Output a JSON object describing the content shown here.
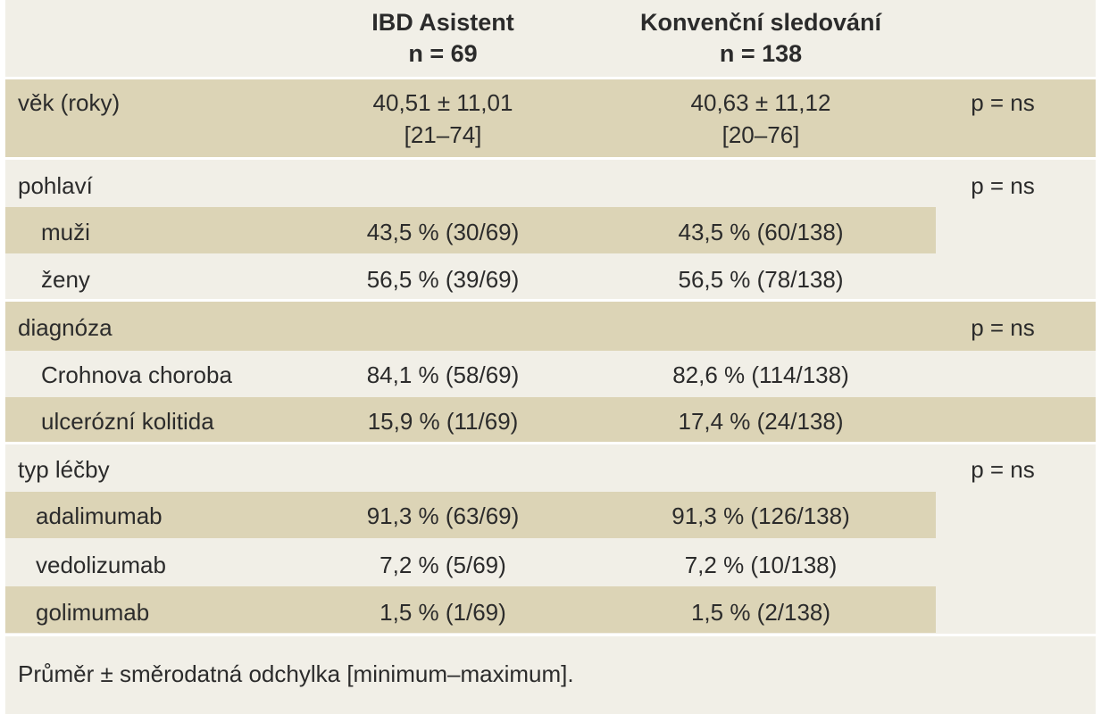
{
  "header": {
    "col_ibd_title": "IBD Asistent",
    "col_ibd_n": "n = 69",
    "col_conv_title": "Konvenční sledování",
    "col_conv_n": "n = 138"
  },
  "rows": {
    "age": {
      "label": "věk (roky)",
      "ibd_line1": "40,51 ± 11,01",
      "ibd_line2": "[21–74]",
      "conv_line1": "40,63 ± 11,12",
      "conv_line2": "[20–76]",
      "p": "p = ns"
    },
    "sex": {
      "label": "pohlaví",
      "p": "p = ns"
    },
    "men": {
      "label": "muži",
      "ibd": "43,5 % (30/69)",
      "conv": "43,5 % (60/138)"
    },
    "women": {
      "label": "ženy",
      "ibd": "56,5 % (39/69)",
      "conv": "56,5 % (78/138)"
    },
    "diagnosis": {
      "label": "diagnóza",
      "p": "p = ns"
    },
    "crohn": {
      "label": "Crohnova choroba",
      "ibd": "84,1 % (58/69)",
      "conv": "82,6 % (114/138)"
    },
    "uc": {
      "label": "ulcerózní kolitida",
      "ibd": "15,9 % (11/69)",
      "conv": "17,4 % (24/138)"
    },
    "treatment": {
      "label": "typ léčby",
      "p": "p = ns"
    },
    "adalimumab": {
      "label": "adalimumab",
      "ibd": "91,3 % (63/69)",
      "conv": "91,3 % (126/138)"
    },
    "vedolizumab": {
      "label": "vedolizumab",
      "ibd": "7,2 % (5/69)",
      "conv": "7,2 % (10/138)"
    },
    "golimumab": {
      "label": "golimumab",
      "ibd": "1,5 % (1/69)",
      "conv": "1,5 % (2/138)"
    }
  },
  "footnote": "Průměr ± směrodatná odchylka [minimum–maximum]."
}
